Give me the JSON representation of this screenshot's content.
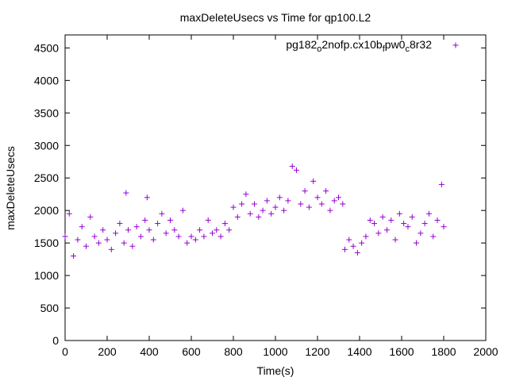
{
  "chart_data": {
    "type": "scatter",
    "title": "maxDeleteUsecs vs Time for qp100.L2",
    "xlabel": "Time(s)",
    "ylabel": "maxDeleteUsecs",
    "xlim": [
      0,
      2000
    ],
    "ylim": [
      0,
      4700
    ],
    "xticks": [
      "0",
      "200",
      "400",
      "600",
      "800",
      "1000",
      "1200",
      "1400",
      "1600",
      "1800",
      "2000"
    ],
    "yticks": [
      "0",
      "500",
      "1000",
      "1500",
      "2000",
      "2500",
      "3000",
      "3500",
      "4000",
      "4500"
    ],
    "grid": false,
    "legend_position": "top-right",
    "marker": "+",
    "series": [
      {
        "name": "pg182_o2nofp.cx10b_fpw0_c8r32",
        "legend_parts": [
          "pg182",
          "o",
          "2nofp.cx10b",
          "f",
          "pw0",
          "c",
          "8r32"
        ],
        "color": "#9400d3",
        "points": [
          [
            0,
            1600
          ],
          [
            20,
            1950
          ],
          [
            40,
            1300
          ],
          [
            60,
            1550
          ],
          [
            80,
            1750
          ],
          [
            100,
            1450
          ],
          [
            120,
            1900
          ],
          [
            140,
            1600
          ],
          [
            160,
            1500
          ],
          [
            180,
            1700
          ],
          [
            200,
            1550
          ],
          [
            220,
            1400
          ],
          [
            240,
            1650
          ],
          [
            260,
            1800
          ],
          [
            280,
            1500
          ],
          [
            290,
            2270
          ],
          [
            300,
            1700
          ],
          [
            320,
            1450
          ],
          [
            340,
            1750
          ],
          [
            360,
            1600
          ],
          [
            380,
            1850
          ],
          [
            390,
            2200
          ],
          [
            400,
            1700
          ],
          [
            420,
            1550
          ],
          [
            440,
            1800
          ],
          [
            460,
            1950
          ],
          [
            480,
            1650
          ],
          [
            500,
            1850
          ],
          [
            520,
            1700
          ],
          [
            540,
            1600
          ],
          [
            560,
            2000
          ],
          [
            580,
            1500
          ],
          [
            600,
            1600
          ],
          [
            620,
            1550
          ],
          [
            640,
            1700
          ],
          [
            660,
            1600
          ],
          [
            680,
            1850
          ],
          [
            700,
            1650
          ],
          [
            720,
            1700
          ],
          [
            740,
            1600
          ],
          [
            760,
            1800
          ],
          [
            780,
            1700
          ],
          [
            800,
            2050
          ],
          [
            820,
            1900
          ],
          [
            840,
            2100
          ],
          [
            860,
            2250
          ],
          [
            880,
            1950
          ],
          [
            900,
            2100
          ],
          [
            920,
            1900
          ],
          [
            940,
            2000
          ],
          [
            960,
            2150
          ],
          [
            980,
            1950
          ],
          [
            1000,
            2050
          ],
          [
            1020,
            2200
          ],
          [
            1040,
            2000
          ],
          [
            1060,
            2150
          ],
          [
            1080,
            2680
          ],
          [
            1100,
            2620
          ],
          [
            1120,
            2100
          ],
          [
            1140,
            2300
          ],
          [
            1160,
            2050
          ],
          [
            1180,
            2450
          ],
          [
            1200,
            2200
          ],
          [
            1220,
            2100
          ],
          [
            1240,
            2300
          ],
          [
            1260,
            2000
          ],
          [
            1280,
            2150
          ],
          [
            1300,
            2200
          ],
          [
            1320,
            2100
          ],
          [
            1330,
            1400
          ],
          [
            1350,
            1550
          ],
          [
            1370,
            1450
          ],
          [
            1390,
            1350
          ],
          [
            1410,
            1500
          ],
          [
            1430,
            1600
          ],
          [
            1450,
            1850
          ],
          [
            1470,
            1800
          ],
          [
            1490,
            1650
          ],
          [
            1510,
            1900
          ],
          [
            1530,
            1700
          ],
          [
            1550,
            1850
          ],
          [
            1570,
            1550
          ],
          [
            1590,
            1950
          ],
          [
            1610,
            1800
          ],
          [
            1630,
            1750
          ],
          [
            1650,
            1900
          ],
          [
            1670,
            1500
          ],
          [
            1690,
            1650
          ],
          [
            1710,
            1800
          ],
          [
            1730,
            1950
          ],
          [
            1750,
            1600
          ],
          [
            1770,
            1850
          ],
          [
            1790,
            2400
          ],
          [
            1800,
            1750
          ]
        ]
      }
    ]
  }
}
